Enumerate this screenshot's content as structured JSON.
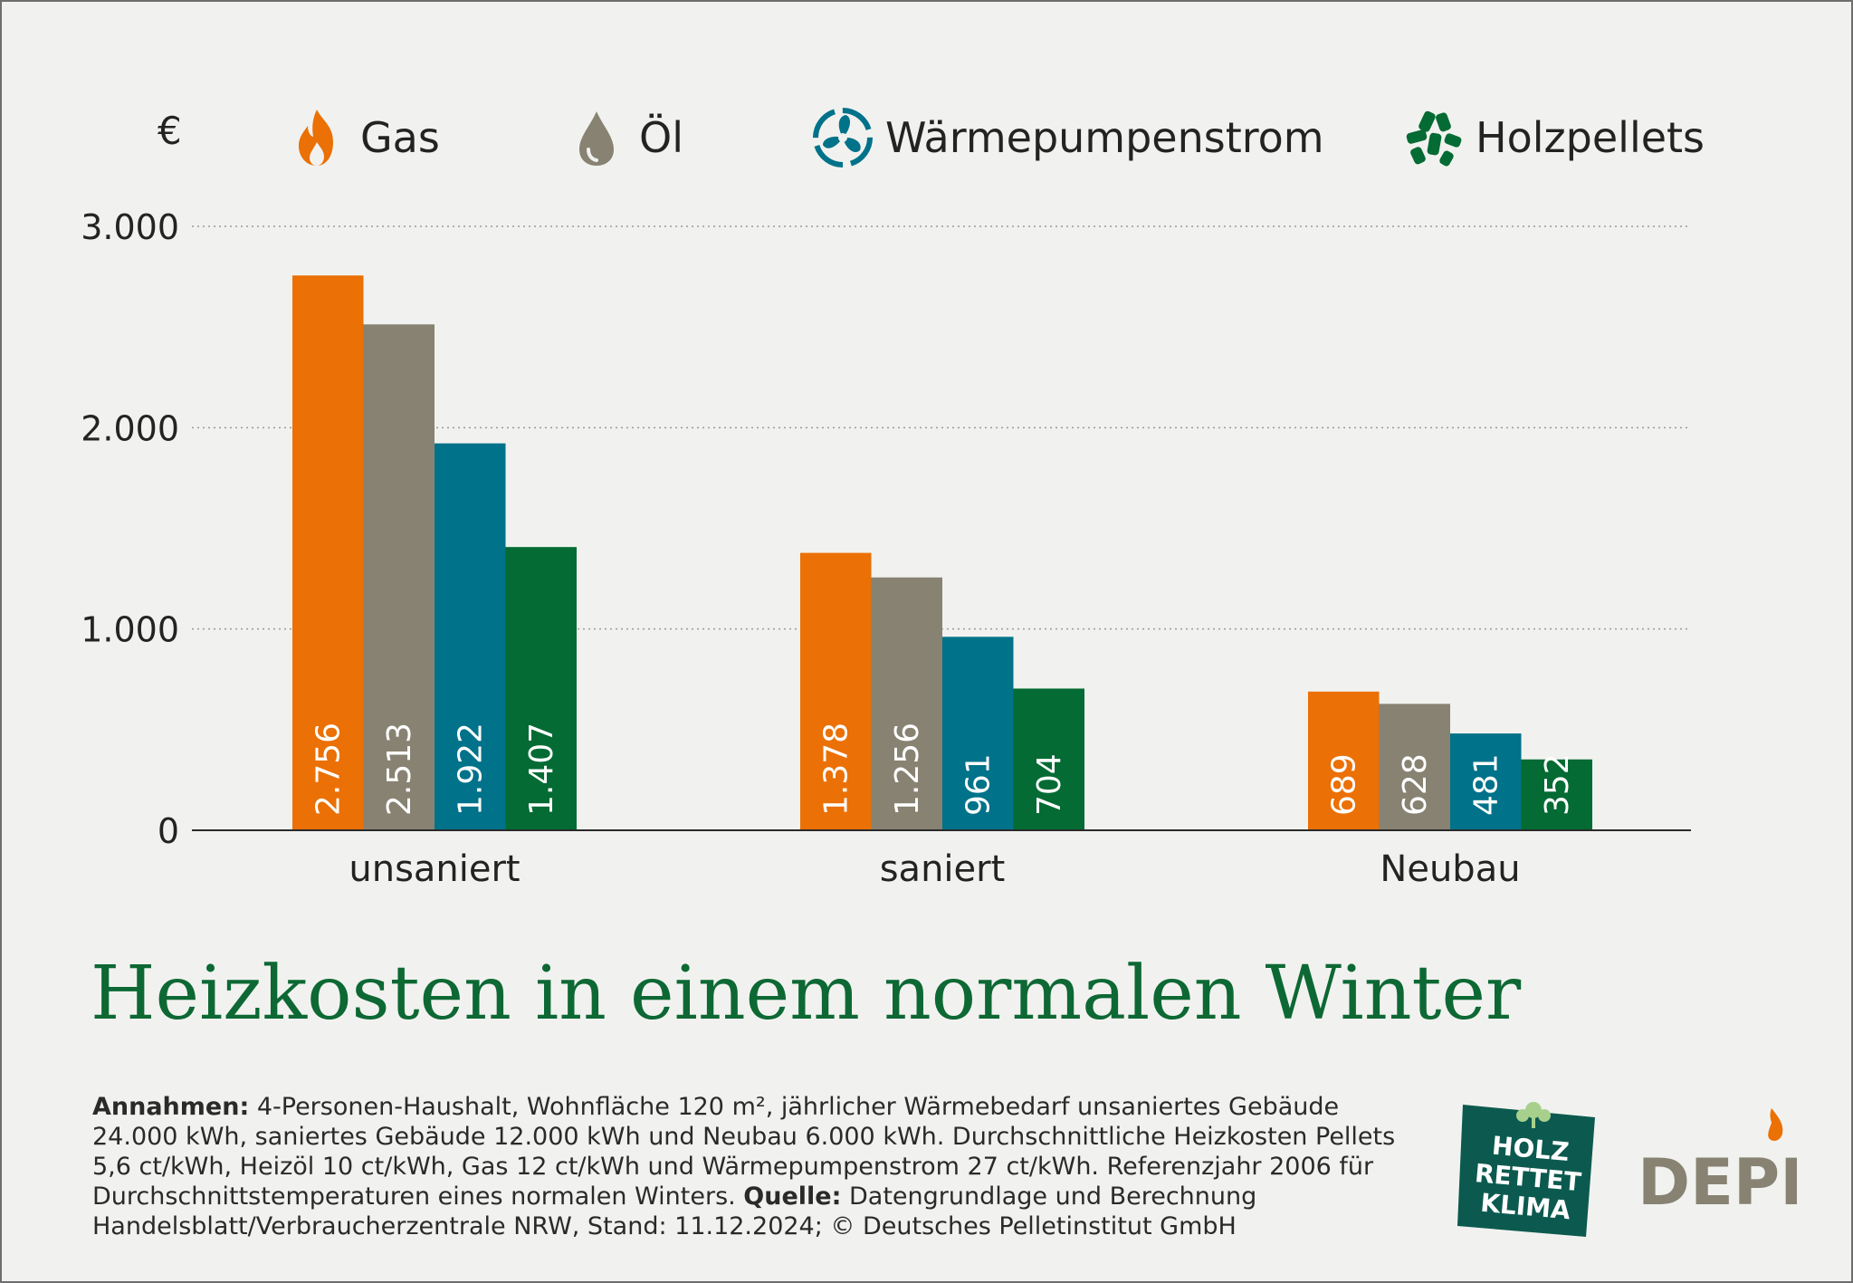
{
  "chart_data": {
    "type": "bar",
    "title": "Heizkosten in einem normalen Winter",
    "ylabel": "€",
    "ylim": [
      0,
      3000
    ],
    "yticks": [
      0,
      1000,
      2000,
      3000
    ],
    "ytick_labels": [
      "0",
      "1.000",
      "2.000",
      "3.000"
    ],
    "grid": true,
    "legend_position": "top",
    "categories": [
      "unsaniert",
      "saniert",
      "Neubau"
    ],
    "series": [
      {
        "name": "Gas",
        "color": "#eb7005",
        "icon": "flame-icon",
        "values": [
          2756,
          1378,
          689
        ],
        "labels": [
          "2.756",
          "1.378",
          "689"
        ]
      },
      {
        "name": "Öl",
        "color": "#878272",
        "icon": "oil-drop-icon",
        "values": [
          2513,
          1256,
          628
        ],
        "labels": [
          "2.513",
          "1.256",
          "628"
        ]
      },
      {
        "name": "Wärmepumpenstrom",
        "color": "#00728a",
        "icon": "heat-pump-fan-icon",
        "values": [
          1922,
          961,
          481
        ],
        "labels": [
          "1.922",
          "961",
          "481"
        ]
      },
      {
        "name": "Holzpellets",
        "color": "#036b33",
        "icon": "pellets-icon",
        "values": [
          1407,
          704,
          352
        ],
        "labels": [
          "1.407",
          "704",
          "352"
        ]
      }
    ]
  },
  "notes": {
    "assumptions_label": "Annahmen:",
    "assumptions_text": " 4-Personen-Haushalt, Wohnfläche 120 m², jährlicher Wärmebedarf unsaniertes Gebäude 24.000 kWh, saniertes Gebäude 12.000 kWh und Neubau 6.000 kWh. Durchschnittliche Heizkosten Pellets 5,6 ct/kWh, Heizöl 10 ct/kWh, Gas 12 ct/kWh und Wärmepumpenstrom 27 ct/kWh. Referenzjahr 2006 für Durchschnittstemperaturen eines normalen Winters. ",
    "source_label": "Quelle:",
    "source_text": " Datengrundlage und Berechnung Handelsblatt/Verbraucherzentrale NRW, Stand: 11.12.2024; © Deutsches Pelletinstitut GmbH"
  },
  "logos": {
    "holz_rettet_klima": [
      "HOLZ",
      "RETTET",
      "KLIMA"
    ],
    "depi": "DEPI"
  }
}
